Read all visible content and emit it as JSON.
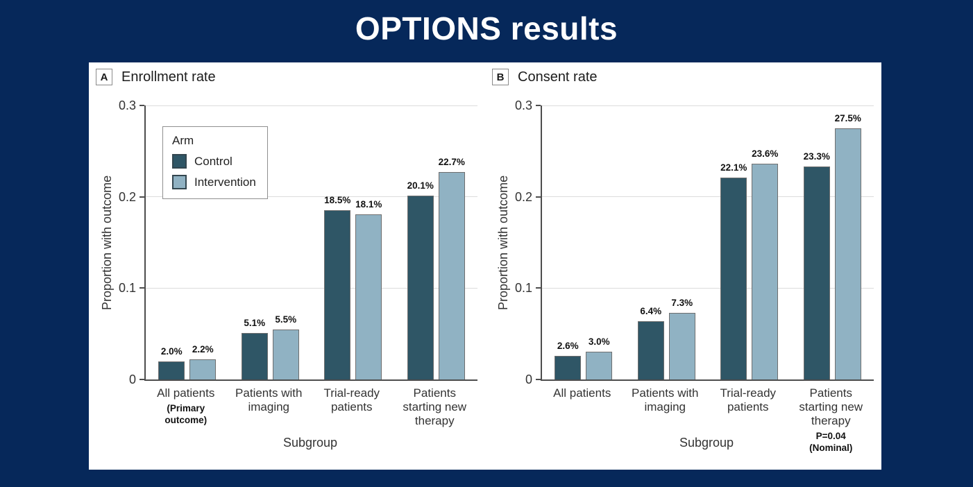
{
  "title": "OPTIONS results",
  "colors": {
    "background": "#06285a",
    "card": "#ffffff",
    "control": "#2f5666",
    "intervention": "#90b2c3",
    "bar_border": "#6e6e6e",
    "axis": "#4d4d4d",
    "gridline": "#dcdcdc"
  },
  "legend": {
    "title": "Arm",
    "entries": [
      {
        "label": "Control",
        "color_key": "control"
      },
      {
        "label": "Intervention",
        "color_key": "intervention"
      }
    ]
  },
  "chart_data": [
    {
      "type": "bar",
      "panel_letter": "A",
      "panel_title": "Enrollment rate",
      "ylabel": "Proportion with outcome",
      "xlabel": "Subgroup",
      "ylim": [
        0,
        0.3
      ],
      "yticks": [
        "0",
        "0.1",
        "0.2",
        "0.3"
      ],
      "grid": true,
      "show_legend": true,
      "legend_position": "upper-left-inside",
      "categories": [
        "All patients",
        "Patients with imaging",
        "Trial-ready patients",
        "Patients starting new therapy"
      ],
      "category_notes": [
        "(Primary outcome)",
        "",
        "",
        ""
      ],
      "series": [
        {
          "name": "Control",
          "color_key": "control",
          "values": [
            0.02,
            0.051,
            0.185,
            0.201
          ],
          "labels": [
            "2.0%",
            "5.1%",
            "18.5%",
            "20.1%"
          ]
        },
        {
          "name": "Intervention",
          "color_key": "intervention",
          "values": [
            0.022,
            0.055,
            0.181,
            0.227
          ],
          "labels": [
            "2.2%",
            "5.5%",
            "18.1%",
            "22.7%"
          ]
        }
      ]
    },
    {
      "type": "bar",
      "panel_letter": "B",
      "panel_title": "Consent rate",
      "ylabel": "Proportion with outcome",
      "xlabel": "Subgroup",
      "ylim": [
        0,
        0.3
      ],
      "yticks": [
        "0",
        "0.1",
        "0.2",
        "0.3"
      ],
      "grid": true,
      "show_legend": false,
      "categories": [
        "All patients",
        "Patients with imaging",
        "Trial-ready patients",
        "Patients starting new therapy"
      ],
      "category_notes": [
        "",
        "",
        "",
        "P=0.04\n(Nominal)"
      ],
      "series": [
        {
          "name": "Control",
          "color_key": "control",
          "values": [
            0.026,
            0.064,
            0.221,
            0.233
          ],
          "labels": [
            "2.6%",
            "6.4%",
            "22.1%",
            "23.3%"
          ]
        },
        {
          "name": "Intervention",
          "color_key": "intervention",
          "values": [
            0.03,
            0.073,
            0.236,
            0.275
          ],
          "labels": [
            "3.0%",
            "7.3%",
            "23.6%",
            "27.5%"
          ]
        }
      ]
    }
  ]
}
